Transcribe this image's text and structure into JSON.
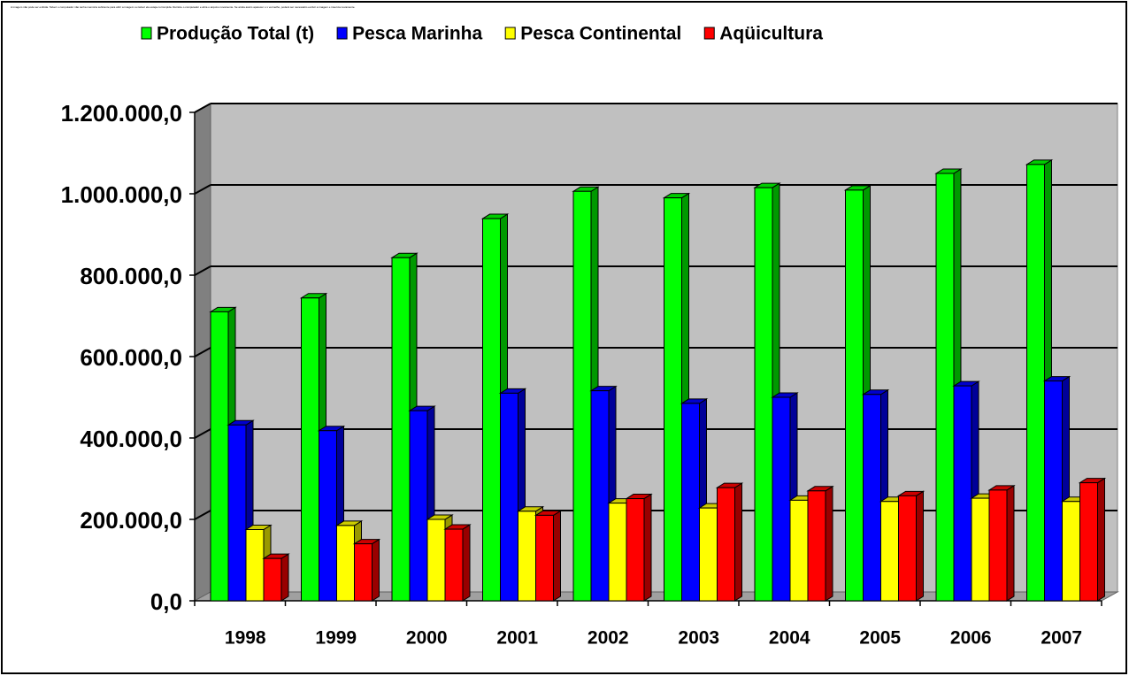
{
  "chart_data": {
    "type": "bar3d",
    "annotation": "A imagem não pode ser exibida. Talvez o computador não tenha memória suficiente para abrir a imagem ou talvez ela esteja corrompida. Reinicie o computador e abra o arquivo novamente. Se ainda assim aparecer o x vermelho, poderá ser necessário excluir a imagem e inseri-la novamente.",
    "categories": [
      "1998",
      "1999",
      "2000",
      "2001",
      "2002",
      "2003",
      "2004",
      "2005",
      "2006",
      "2007"
    ],
    "series": [
      {
        "name": "Produção Total (t)",
        "color": "#00ff00",
        "values": [
          710000,
          744000,
          843000,
          939000,
          1006000,
          990000,
          1015000,
          1009000,
          1050000,
          1072000
        ]
      },
      {
        "name": "Pesca Marinha",
        "color": "#0000ff",
        "values": [
          432000,
          418000,
          467000,
          510000,
          516000,
          485000,
          500000,
          507000,
          528000,
          540000
        ]
      },
      {
        "name": "Pesca Continental",
        "color": "#ffff00",
        "values": [
          175000,
          185000,
          200000,
          220000,
          240000,
          228000,
          247000,
          244000,
          252000,
          244000
        ]
      },
      {
        "name": "Aqüicultura",
        "color": "#ff0000",
        "values": [
          104000,
          140000,
          176000,
          210000,
          251000,
          278000,
          270000,
          258000,
          272000,
          290000
        ]
      }
    ],
    "ylim": [
      0,
      1200000
    ],
    "yticks": [
      {
        "value": 0,
        "label": "0,0"
      },
      {
        "value": 200000,
        "label": "200.000,0"
      },
      {
        "value": 400000,
        "label": "400.000,0"
      },
      {
        "value": 600000,
        "label": "600.000,0"
      },
      {
        "value": 800000,
        "label": "800.000,0"
      },
      {
        "value": 1000000,
        "label": "1.000.000,0"
      },
      {
        "value": 1200000,
        "label": "1.200.000,0"
      }
    ],
    "grid": true,
    "legend": "top"
  }
}
